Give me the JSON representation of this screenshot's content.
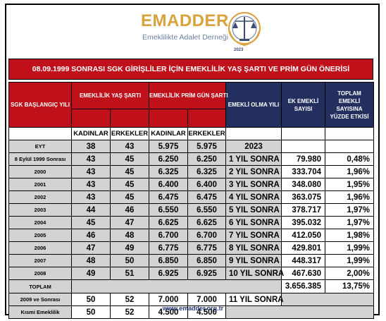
{
  "logo": {
    "name": "EMADDER",
    "tagline": "Emeklilikte Adalet Derneği",
    "year": "2023"
  },
  "title": "08.09.1999 SONRASI SGK GİRİŞLİLER İÇİN EMEKLİLİK YAŞ ŞARTI VE PRİM GÜN ÖNERİSİ",
  "headers": {
    "start_year": "SGK BAŞLANGIÇ YILI",
    "age_req": "EMEKLİLİK YAŞ ŞARTI",
    "prim_req": "EMEKLİLİK PRİM GÜN ŞARTI",
    "retire_year": "EMEKLİ OLMA YILI",
    "extra": "EK EMEKLİ SAYISI",
    "effect": "TOPLAM EMEKLİ SAYISINA YÜZDE ETKİSİ",
    "women": "KADINLAR",
    "men": "ERKEKLER",
    "women2": "KADINLAR",
    "men2": "ERKEKLER"
  },
  "rows": [
    {
      "label": "EYT",
      "ak": "38",
      "ae": "43",
      "pk": "5.975",
      "pe": "5.975",
      "year": "2023",
      "extra": "",
      "pct": ""
    },
    {
      "label": "8 Eylül 1999 Sonrası",
      "ak": "43",
      "ae": "45",
      "pk": "6.250",
      "pe": "6.250",
      "year": "1 YIL SONRA",
      "extra": "79.980",
      "pct": "0,48%"
    },
    {
      "label": "2000",
      "ak": "43",
      "ae": "45",
      "pk": "6.325",
      "pe": "6.325",
      "year": "2 YIL SONRA",
      "extra": "333.704",
      "pct": "1,96%"
    },
    {
      "label": "2001",
      "ak": "43",
      "ae": "45",
      "pk": "6.400",
      "pe": "6.400",
      "year": "3 YIL SONRA",
      "extra": "348.080",
      "pct": "1,95%"
    },
    {
      "label": "2002",
      "ak": "43",
      "ae": "45",
      "pk": "6.475",
      "pe": "6.475",
      "year": "4 YIL SONRA",
      "extra": "363.075",
      "pct": "1,96%"
    },
    {
      "label": "2003",
      "ak": "44",
      "ae": "46",
      "pk": "6.550",
      "pe": "6.550",
      "year": "5 YIL SONRA",
      "extra": "378.717",
      "pct": "1,97%"
    },
    {
      "label": "2004",
      "ak": "45",
      "ae": "47",
      "pk": "6.625",
      "pe": "6.625",
      "year": "6 YIL SONRA",
      "extra": "395.032",
      "pct": "1,97%"
    },
    {
      "label": "2005",
      "ak": "46",
      "ae": "48",
      "pk": "6.700",
      "pe": "6.700",
      "year": "7 YIL SONRA",
      "extra": "412.050",
      "pct": "1,98%"
    },
    {
      "label": "2006",
      "ak": "47",
      "ae": "49",
      "pk": "6.775",
      "pe": "6.775",
      "year": "8 YIL SONRA",
      "extra": "429.801",
      "pct": "1,99%"
    },
    {
      "label": "2007",
      "ak": "48",
      "ae": "50",
      "pk": "6.850",
      "pe": "6.850",
      "year": "9 YIL SONRA",
      "extra": "448.317",
      "pct": "1,99%"
    },
    {
      "label": "2008",
      "ak": "49",
      "ae": "51",
      "pk": "6.925",
      "pe": "6.925",
      "year": "10 YIL SONRA",
      "extra": "467.630",
      "pct": "2,00%"
    }
  ],
  "total": {
    "label": "TOPLAM",
    "extra": "3.656.385",
    "pct": "13,75%"
  },
  "after": {
    "label": "2009 ve Sonrası",
    "ak": "50",
    "ae": "52",
    "pk": "7.000",
    "pe": "7.000",
    "year": "11 YIL SONRA"
  },
  "partial": {
    "label": "Kısmi Emeklilik",
    "ak": "50",
    "ae": "52",
    "pk": "4.500",
    "pe": "4.500"
  },
  "footer": "www.emadder.org.tr",
  "colors": {
    "red": "#c0101a",
    "navy": "#23305f",
    "gray": "#d3d3d3",
    "gold": "#d9a23c"
  }
}
